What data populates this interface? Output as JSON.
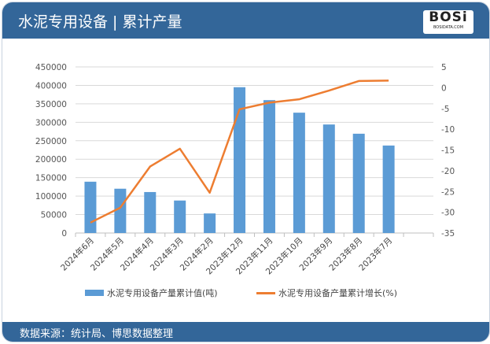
{
  "header": {
    "title": "水泥专用设备 | 累计产量",
    "logo_text": "BOSi",
    "logo_sub": "BOSIDATA.COM"
  },
  "footer": {
    "source": "数据来源：统计局、博思数据整理"
  },
  "colors": {
    "bar": "#5b9bd5",
    "line": "#ed7d31",
    "header": "#336699"
  },
  "chart_data": {
    "type": "bar+line",
    "categories": [
      "2024年6月",
      "2024年5月",
      "2024年4月",
      "2024年3月",
      "2024年2月",
      "2023年12月",
      "2023年11月",
      "2023年10月",
      "2023年9月",
      "2023年8月",
      "2023年7月"
    ],
    "series": [
      {
        "name": "水泥专用设备产量累计值(吨)",
        "type": "bar",
        "axis": "left",
        "values": [
          139000,
          120000,
          111000,
          88000,
          53000,
          395000,
          360000,
          326000,
          294000,
          269000,
          237000
        ]
      },
      {
        "name": "水泥专用设备产量累计增长(%)",
        "type": "line",
        "axis": "right",
        "values": [
          -32.5,
          -28.9,
          -19,
          -14.7,
          -25.3,
          -5.2,
          -3.6,
          -2.8,
          -0.7,
          1.6,
          1.7
        ]
      }
    ],
    "y_left": {
      "min": 0,
      "max": 450000,
      "step": 50000,
      "ticks": [
        "0",
        "50000",
        "100000",
        "150000",
        "200000",
        "250000",
        "300000",
        "350000",
        "400000",
        "450000"
      ]
    },
    "y_right": {
      "min": -35,
      "max": 5,
      "step": 5,
      "ticks": [
        "-35",
        "-30",
        "-25",
        "-20",
        "-15",
        "-10",
        "-5",
        "0",
        "5"
      ]
    },
    "grid": true,
    "legend": "bottom"
  }
}
